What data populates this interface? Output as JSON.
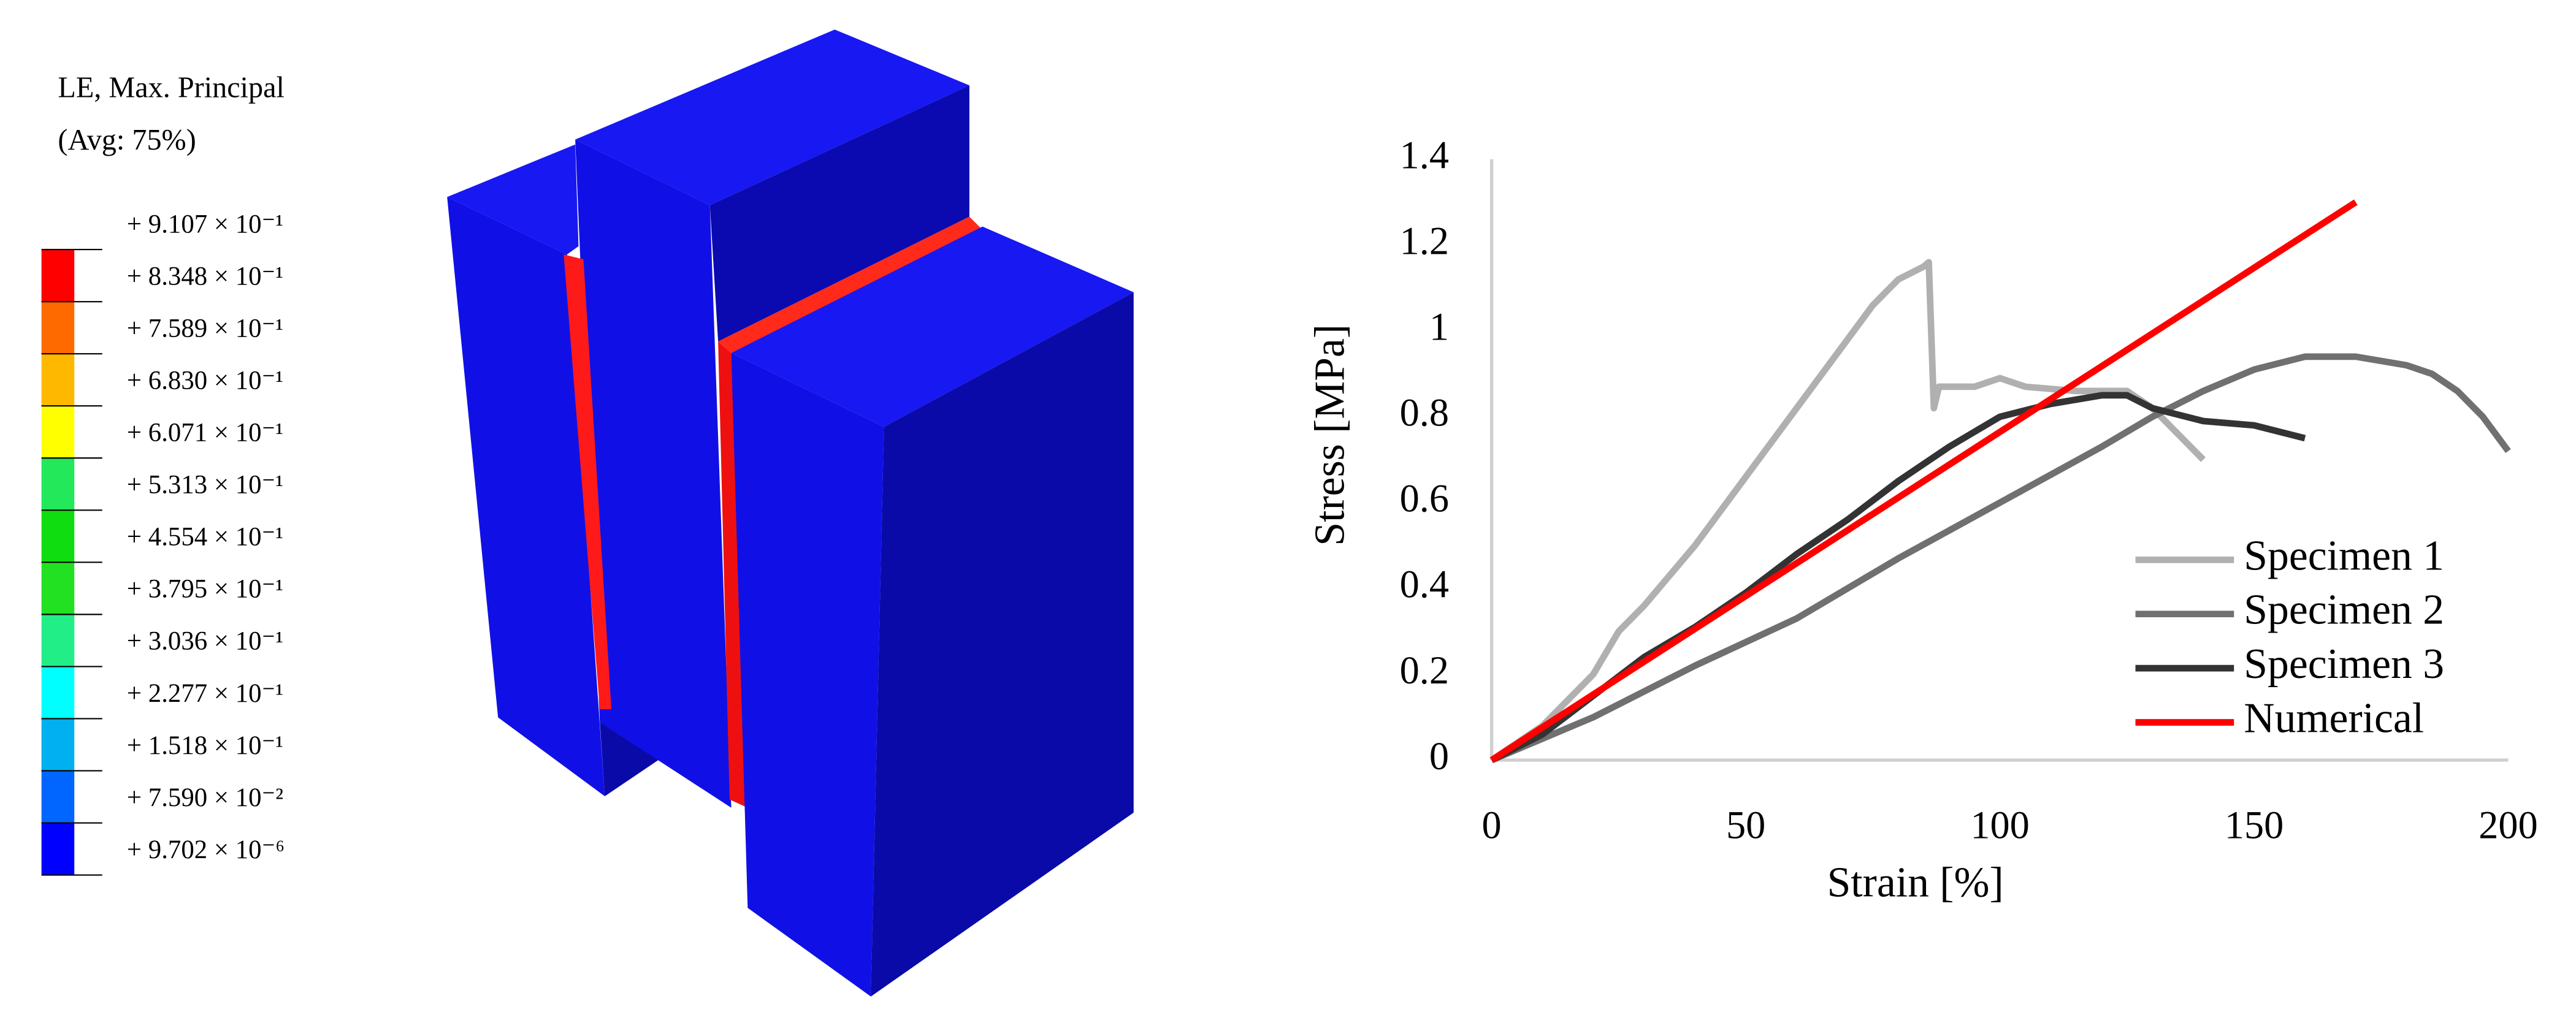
{
  "contour_legend": {
    "title": [
      "LE, Max. Principal",
      "(Avg: 75%)"
    ],
    "labels": [
      "+ 9.107 × 10⁻¹",
      "+ 8.348 × 10⁻¹",
      "+ 7.589 × 10⁻¹",
      "+ 6.830 × 10⁻¹",
      "+ 6.071 × 10⁻¹",
      "+ 5.313 × 10⁻¹",
      "+ 4.554 × 10⁻¹",
      "+ 3.795 × 10⁻¹",
      "+ 3.036 × 10⁻¹",
      "+ 2.277 × 10⁻¹",
      "+ 1.518 × 10⁻¹",
      "+ 7.590 × 10⁻²",
      "+ 9.702 × 10⁻⁶"
    ],
    "colors": [
      "#ff0000",
      "#ff6a00",
      "#ffb800",
      "#ffff00",
      "#22e85a",
      "#10dd10",
      "#22e022",
      "#22ee88",
      "#00ffff",
      "#00b0f0",
      "#0066ff",
      "#0000ff"
    ]
  },
  "chart_data": {
    "type": "line",
    "x_label": "Strain [%]",
    "y_label": "Stress [MPa]",
    "xlim": [
      0,
      200
    ],
    "xticks": [
      0,
      50,
      100,
      150,
      200
    ],
    "ylim": [
      0,
      1.4
    ],
    "yticks": [
      0,
      0.2,
      0.4,
      0.6,
      0.8,
      1,
      1.2,
      1.4
    ],
    "grid": false,
    "legend": "lower right",
    "series": [
      {
        "name": "Specimen 1",
        "color": "#b0b0b0",
        "x": [
          0,
          10,
          20,
          25,
          30,
          40,
          50,
          60,
          70,
          75,
          80,
          85,
          86,
          87,
          88,
          95,
          100,
          105,
          115,
          125,
          130,
          135,
          140
        ],
        "values": [
          0,
          0.08,
          0.2,
          0.3,
          0.36,
          0.5,
          0.66,
          0.82,
          0.98,
          1.06,
          1.12,
          1.15,
          1.16,
          0.82,
          0.87,
          0.87,
          0.89,
          0.87,
          0.86,
          0.86,
          0.82,
          0.76,
          0.7
        ]
      },
      {
        "name": "Specimen 2",
        "color": "#707070",
        "x": [
          0,
          20,
          40,
          60,
          80,
          100,
          120,
          130,
          140,
          150,
          160,
          170,
          180,
          185,
          190,
          195,
          200
        ],
        "values": [
          0,
          0.1,
          0.22,
          0.33,
          0.47,
          0.6,
          0.73,
          0.8,
          0.86,
          0.91,
          0.94,
          0.94,
          0.92,
          0.9,
          0.86,
          0.8,
          0.72
        ]
      },
      {
        "name": "Specimen 3",
        "color": "#333333",
        "x": [
          0,
          10,
          20,
          30,
          40,
          50,
          60,
          70,
          80,
          90,
          100,
          110,
          120,
          125,
          130,
          140,
          150,
          160
        ],
        "values": [
          0,
          0.06,
          0.15,
          0.24,
          0.31,
          0.39,
          0.48,
          0.56,
          0.65,
          0.73,
          0.8,
          0.83,
          0.85,
          0.85,
          0.82,
          0.79,
          0.78,
          0.75
        ]
      },
      {
        "name": "Numerical",
        "color": "#ff0000",
        "x": [
          0,
          170
        ],
        "values": [
          0,
          1.3
        ]
      }
    ]
  }
}
